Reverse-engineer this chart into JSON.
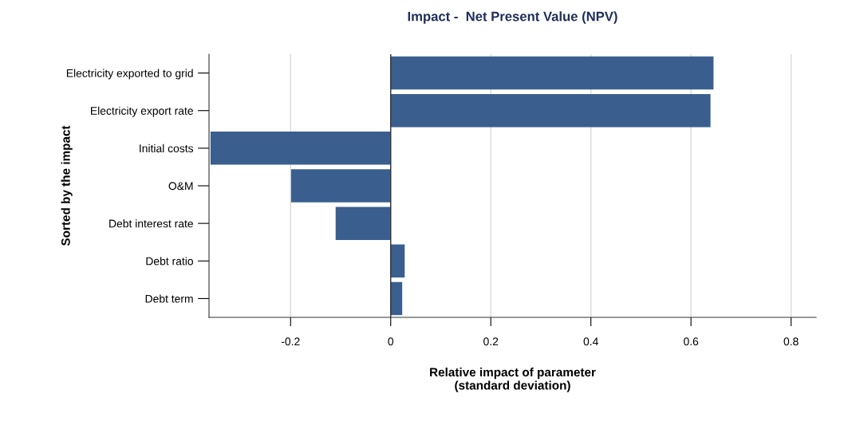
{
  "chart_data": {
    "type": "bar",
    "orientation": "horizontal",
    "title": "Impact -  Net Present Value (NPV)",
    "xlabel": "Relative impact of parameter\n(standard deviation)",
    "ylabel": "Sorted by the impact",
    "categories": [
      "Electricity exported to grid",
      "Electricity export rate",
      "Initial costs",
      "O&M",
      "Debt interest rate",
      "Debt ratio",
      "Debt term"
    ],
    "values": [
      0.645,
      0.639,
      -0.36,
      -0.199,
      -0.11,
      0.028,
      0.023
    ],
    "color": "#3a5f8f",
    "xlim": [
      -0.363,
      0.85
    ],
    "xticks": [
      -0.2,
      0,
      0.2,
      0.4,
      0.6,
      0.8
    ],
    "grid": "x"
  }
}
